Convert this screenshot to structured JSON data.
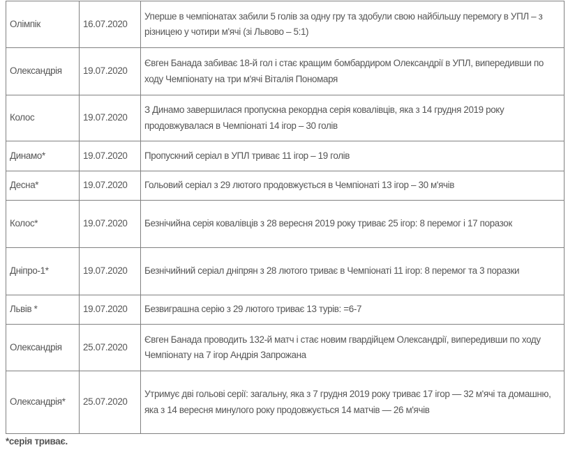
{
  "rows": [
    {
      "team": "Олімпік",
      "date": "16.07.2020",
      "text": "Уперше в чемпіонатах забили 5 голів за одну гру та здобули свою найбільшу перемогу в УПЛ – з різницею у чотири м'ячі (зі Львово – 5:1)"
    },
    {
      "team": "Олександрія",
      "date": "19.07.2020",
      "text": "Євген Банада забиває 18-й гол і стає кращим бомбардиром Олександрії в УПЛ, випередивши по ходу Чемпіонату на три м'ячі Віталія Пономаря"
    },
    {
      "team": "Колос",
      "date": "19.07.2020",
      "text": "З Динамо завершилася пропускна рекордна серія ковалівців, яка з 14 грудня 2019 року продовжувалася в Чемпіонаті 14 ігор – 30 голів"
    },
    {
      "team": "Динамо*",
      "date": "19.07.2020",
      "text": "Пропускний серіал в УПЛ триває 11 ігор – 19 голів"
    },
    {
      "team": "Десна*",
      "date": "19.07.2020",
      "text": "Гольовий серіал з 29 лютого продовжується в Чемпіонаті 13 ігор – 30 м'ячів"
    },
    {
      "team": "Колос*",
      "date": "19.07.2020",
      "text": "Безнічийна серія ковалівців з 28 вересня 2019 року триває 25 ігор: 8 перемог і 17 поразок"
    },
    {
      "team": "Дніпро-1*",
      "date": "19.07.2020",
      "text": "Безнічийний серіал дніпрян з 28 лютого триває в Чемпіонаті 11 ігор: 8 перемог та 3 поразки"
    },
    {
      "team": "Львів *",
      "date": "19.07.2020",
      "text": "Безвиграшна серію з 29 лютого триває 13 турів: =6-7"
    },
    {
      "team": "Олександрія",
      "date": "25.07.2020",
      "text": "Євген Банада проводить 132-й матч і стає новим гвардійцем Олександрії, випередивши по ходу Чемпіонату на 7 ігор Андрія Запрожана"
    },
    {
      "team": "Олександрія*",
      "date": "25.07.2020",
      "text": "Утримує дві гольові серії: загальну, яка з 7 грудня 2019 року триває 17 ігор — 32 м'ячі та домашню, яка з 14 вересня минулого року продовжується 14 матчів — 26 м'ячів"
    }
  ],
  "footnote": "*серія триває."
}
